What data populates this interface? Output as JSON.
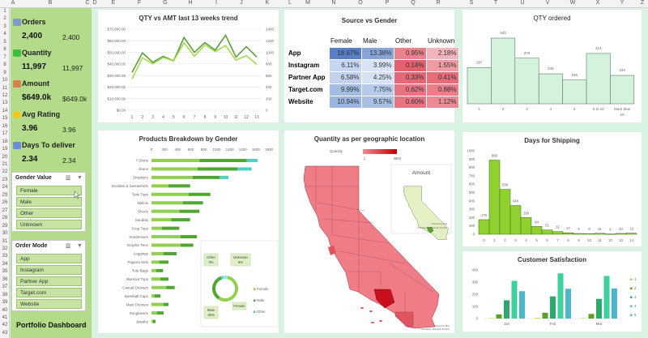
{
  "sheet": {
    "columns": [
      "A",
      "B",
      "C",
      "D",
      "E",
      "F",
      "G",
      "H",
      "I",
      "J",
      "K",
      "L",
      "M",
      "N",
      "O",
      "P",
      "Q",
      "R",
      "S",
      "T",
      "U",
      "V",
      "W",
      "X",
      "Y",
      "Z"
    ],
    "rows": 43
  },
  "kpis": [
    {
      "label": "Orders",
      "value": "2,400",
      "value2": "2,400",
      "icon": "cart-icon",
      "color": "#7a9cc6"
    },
    {
      "label": "Quantity",
      "value": "11,997",
      "value2": "11,997",
      "icon": "stack-icon",
      "color": "#3fbf3f"
    },
    {
      "label": "Amount",
      "value": "$649.0k",
      "value2": "$649.0k",
      "icon": "money-bag-icon",
      "color": "#d4824a"
    },
    {
      "label": "Avg Rating",
      "value": "3.96",
      "value2": "3.96",
      "icon": "star-icon",
      "color": "#f5c518"
    },
    {
      "label": "Days To deliver",
      "value": "2.34",
      "value2": "2.34",
      "icon": "calendar-icon",
      "color": "#6a8fd8"
    }
  ],
  "slicers": {
    "gender": {
      "title": "Gender Value",
      "items": [
        "Female",
        "Male",
        "Other",
        "Unknown"
      ]
    },
    "order_mode": {
      "title": "Order Mode",
      "items": [
        "App",
        "Instagram",
        "Partner App",
        "Target.com",
        "Website"
      ]
    }
  },
  "dashboard_title": "Portfolio Dashboard",
  "source_gender": {
    "title": "Source vs Gender",
    "columns": [
      "Female",
      "Male",
      "Other",
      "Unknown"
    ],
    "rows": [
      {
        "label": "App",
        "values": [
          "18.67%",
          "13.38%",
          "0.95%",
          "2.18%"
        ]
      },
      {
        "label": "Instagram",
        "values": [
          "6.11%",
          "3.99%",
          "0.14%",
          "1.55%"
        ]
      },
      {
        "label": "Partner App",
        "values": [
          "6.58%",
          "4.25%",
          "0.33%",
          "0.41%"
        ]
      },
      {
        "label": "Target.com",
        "values": [
          "9.99%",
          "7.75%",
          "0.62%",
          "0.88%"
        ]
      },
      {
        "label": "Website",
        "values": [
          "10.94%",
          "9.57%",
          "0.60%",
          "1.12%"
        ]
      }
    ]
  },
  "map": {
    "title": "Quantity as per geographic location",
    "legend_label": "Quantity",
    "legend_min": "1",
    "legend_max": "3993",
    "inset_title": "Amount",
    "credit1": "Powered by Bing",
    "credit2": "© GeoNames, Microsoft, TomTom",
    "colors": {
      "low": "#f08a94",
      "high": "#c00000"
    }
  },
  "chart_data": [
    {
      "id": "trend",
      "type": "line",
      "title": "QTY vs AMT last 13 weeks trend",
      "x": [
        1,
        2,
        3,
        4,
        5,
        6,
        7,
        8,
        9,
        10,
        11,
        12,
        13
      ],
      "ylim": [
        0,
        70000
      ],
      "yticks": [
        "$0.00",
        "$10,000.00",
        "$20,000.00",
        "$30,000.00",
        "$40,000.00",
        "$50,000.00",
        "$60,000.00",
        "$70,000.00"
      ],
      "y2lim": [
        0,
        1400
      ],
      "y2ticks": [
        "0",
        "200",
        "400",
        "600",
        "800",
        "1000",
        "1200",
        "1400"
      ],
      "grid": true,
      "series": [
        {
          "axis": "left",
          "color": "#5a9e3a",
          "values": [
            32600,
            49500,
            41400,
            46500,
            42600,
            62800,
            50000,
            58400,
            51900,
            64700,
            46000,
            54900,
            46000
          ]
        },
        {
          "axis": "right",
          "color": "#a6d94e",
          "values": [
            540,
            907,
            800,
            912,
            851,
            1163,
            935,
            1130,
            1014,
            1116,
            865,
            944,
            791
          ]
        }
      ]
    },
    {
      "id": "qty",
      "type": "bar",
      "title": "QTY ordered",
      "categories": [
        "1",
        "2",
        "3",
        "4",
        "5",
        "6 to 10",
        "More than 10"
      ],
      "values": [
        297,
        540,
        375,
        246,
        195,
        414,
        233
      ],
      "color": "#d4f2dc"
    },
    {
      "id": "products",
      "type": "bar",
      "orientation": "horizontal",
      "stacked": true,
      "title": "Products Breakdown by Gender",
      "xlim": [
        0,
        1800
      ],
      "xticks": [
        "0",
        "200",
        "400",
        "600",
        "800",
        "1000",
        "1200",
        "1400",
        "1600",
        "1800"
      ],
      "categories": [
        "T-Shirts",
        "Jeans",
        "Sneakers",
        "Hoodies & Sweatshirts",
        "Tank Tops",
        "Bikinis",
        "Shorts",
        "Sandals",
        "Crop Tops",
        "Sundresses",
        "Graphic Tees",
        "Leggings",
        "Pajama Sets",
        "Tote Bags",
        "Workout Tops",
        "Casual Dresses",
        "Baseball Caps",
        "Maxi Dresses",
        "Sunglasses",
        "Jewelry"
      ],
      "series": [
        {
          "name": "Female",
          "color": "#92d050",
          "values": [
            736,
            707,
            633,
            261,
            571,
            480,
            426,
            302,
            157,
            447,
            447,
            186,
            120,
            70,
            137,
            228,
            46,
            186,
            87,
            21
          ]
        },
        {
          "name": "Male",
          "color": "#4ea72e",
          "values": [
            724,
            609,
            414,
            331,
            331,
            310,
            310,
            290,
            269,
            248,
            194,
            199,
            141,
            108,
            124,
            128,
            91,
            75,
            99,
            41
          ]
        },
        {
          "name": "Other",
          "color": "#4fd1c5",
          "values": [
            166,
            219,
            132,
            0,
            0,
            0,
            0,
            0,
            0,
            0,
            0,
            0,
            0,
            0,
            0,
            0,
            0,
            0,
            0,
            0
          ]
        }
      ]
    },
    {
      "id": "gender_donut",
      "type": "pie",
      "hole": true,
      "labels": [
        "Female",
        "Male",
        "Other",
        "Unknown"
      ],
      "display": [
        "Female",
        "Male\n35%",
        "Other\n3%",
        "Unknown\n6%"
      ],
      "values": [
        56,
        35,
        3,
        6
      ],
      "colors": [
        "#92d050",
        "#4ea72e",
        "#4fd1c5",
        "#9be7df"
      ],
      "legend": [
        "Female",
        "Male",
        "Other"
      ]
    },
    {
      "id": "shipping",
      "type": "bar",
      "title": "Days for Shipping",
      "categories": [
        "0",
        "1",
        "2",
        "3",
        "4",
        "5",
        "6",
        "7",
        "8",
        "9",
        "10",
        "11",
        "12",
        "13",
        "14"
      ],
      "values": [
        175,
        888,
        538,
        344,
        200,
        94,
        51,
        32,
        17,
        9,
        8,
        11,
        4,
        10,
        13
      ],
      "ylim": [
        0,
        1000
      ],
      "yticks": [
        "0",
        "100",
        "200",
        "300",
        "400",
        "500",
        "600",
        "700",
        "800",
        "900",
        "1000"
      ],
      "color": "#8fd12e"
    },
    {
      "id": "satisfaction",
      "type": "bar",
      "title": "Customer Satisfaction",
      "categories": [
        "Jan",
        "Feb",
        "Mar"
      ],
      "ylim": [
        0,
        400
      ],
      "yticks": [
        "0",
        "100",
        "200",
        "300",
        "400"
      ],
      "legend": "right",
      "series": [
        {
          "name": "1",
          "color": "#b5d334",
          "values": [
            3,
            5,
            3
          ]
        },
        {
          "name": "2",
          "color": "#5aa02c",
          "values": [
            35,
            48,
            38
          ]
        },
        {
          "name": "3",
          "color": "#2ea86a",
          "values": [
            150,
            182,
            162
          ]
        },
        {
          "name": "4",
          "color": "#3fd19b",
          "values": [
            310,
            372,
            350
          ]
        },
        {
          "name": "5",
          "color": "#4bb8c9",
          "values": [
            225,
            245,
            248
          ]
        }
      ]
    }
  ]
}
